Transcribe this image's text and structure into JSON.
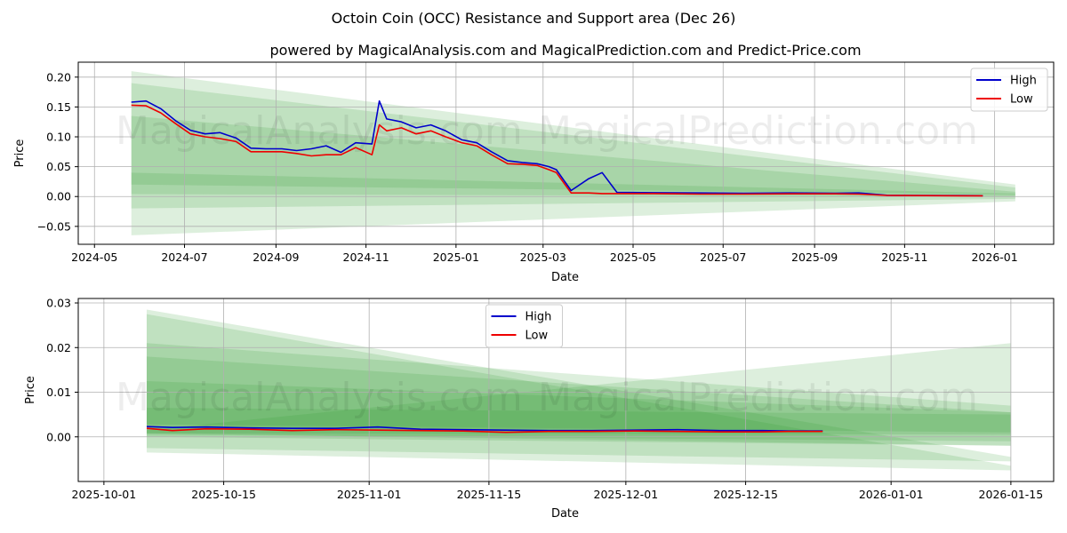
{
  "chart_data": [
    {
      "type": "line",
      "title": "Octoin Coin (OCC) Resistance and Support area (Dec 26)",
      "subtitle": "powered by MagicalAnalysis.com and MagicalPrediction.com and Predict-Price.com",
      "xlabel": "Date",
      "ylabel": "Price",
      "ylim": [
        -0.08,
        0.225
      ],
      "xlim": [
        "2024-04-20",
        "2026-02-10"
      ],
      "x_ticks": [
        "2024-05",
        "2024-07",
        "2024-09",
        "2024-11",
        "2025-01",
        "2025-03",
        "2025-05",
        "2025-07",
        "2025-09",
        "2025-11",
        "2026-01"
      ],
      "x_tick_dates": [
        "2024-05-01",
        "2024-07-01",
        "2024-09-01",
        "2024-11-01",
        "2025-01-01",
        "2025-03-01",
        "2025-05-01",
        "2025-07-01",
        "2025-09-01",
        "2025-11-01",
        "2026-01-01"
      ],
      "y_ticks": [
        "0.20",
        "0.15",
        "0.10",
        "0.05",
        "0.00",
        "−0.05"
      ],
      "y_tick_values": [
        0.2,
        0.15,
        0.1,
        0.05,
        0.0,
        -0.05
      ],
      "grid": true,
      "legend": {
        "position": "top-right",
        "entries": [
          "High",
          "Low"
        ]
      },
      "series": [
        {
          "name": "High",
          "color": "#0000cc",
          "dates": [
            "2024-05-26",
            "2024-06-05",
            "2024-06-15",
            "2024-06-25",
            "2024-07-05",
            "2024-07-15",
            "2024-07-25",
            "2024-08-05",
            "2024-08-15",
            "2024-08-25",
            "2024-09-05",
            "2024-09-15",
            "2024-09-25",
            "2024-10-05",
            "2024-10-15",
            "2024-10-25",
            "2024-11-05",
            "2024-11-10",
            "2024-11-15",
            "2024-11-25",
            "2024-12-05",
            "2024-12-15",
            "2024-12-25",
            "2025-01-05",
            "2025-01-15",
            "2025-01-25",
            "2025-02-05",
            "2025-02-15",
            "2025-02-25",
            "2025-03-05",
            "2025-03-10",
            "2025-03-20",
            "2025-04-01",
            "2025-04-10",
            "2025-04-20",
            "2025-05-15",
            "2025-06-15",
            "2025-07-15",
            "2025-08-15",
            "2025-09-15",
            "2025-10-01",
            "2025-10-20",
            "2025-11-15",
            "2025-12-10",
            "2025-12-24"
          ],
          "values": [
            0.158,
            0.16,
            0.147,
            0.127,
            0.111,
            0.105,
            0.107,
            0.098,
            0.081,
            0.08,
            0.08,
            0.077,
            0.08,
            0.085,
            0.074,
            0.09,
            0.088,
            0.16,
            0.13,
            0.125,
            0.115,
            0.12,
            0.11,
            0.095,
            0.09,
            0.075,
            0.06,
            0.057,
            0.055,
            0.05,
            0.045,
            0.01,
            0.03,
            0.04,
            0.007,
            0.0065,
            0.006,
            0.0055,
            0.006,
            0.0055,
            0.006,
            0.0022,
            0.0018,
            0.0016,
            0.0014
          ]
        },
        {
          "name": "Low",
          "color": "#ee0000",
          "dates": [
            "2024-05-26",
            "2024-06-05",
            "2024-06-15",
            "2024-06-25",
            "2024-07-05",
            "2024-07-15",
            "2024-07-25",
            "2024-08-05",
            "2024-08-15",
            "2024-08-25",
            "2024-09-05",
            "2024-09-15",
            "2024-09-25",
            "2024-10-05",
            "2024-10-15",
            "2024-10-25",
            "2024-11-05",
            "2024-11-10",
            "2024-11-15",
            "2024-11-25",
            "2024-12-05",
            "2024-12-15",
            "2024-12-25",
            "2025-01-05",
            "2025-01-15",
            "2025-01-25",
            "2025-02-05",
            "2025-02-15",
            "2025-02-25",
            "2025-03-05",
            "2025-03-10",
            "2025-03-20",
            "2025-04-01",
            "2025-04-10",
            "2025-04-20",
            "2025-05-15",
            "2025-06-15",
            "2025-07-15",
            "2025-08-15",
            "2025-09-15",
            "2025-10-01",
            "2025-10-20",
            "2025-11-15",
            "2025-12-10",
            "2025-12-24"
          ],
          "values": [
            0.153,
            0.152,
            0.14,
            0.122,
            0.105,
            0.1,
            0.097,
            0.092,
            0.075,
            0.075,
            0.075,
            0.072,
            0.068,
            0.07,
            0.07,
            0.082,
            0.07,
            0.12,
            0.11,
            0.115,
            0.105,
            0.11,
            0.1,
            0.09,
            0.085,
            0.07,
            0.055,
            0.054,
            0.052,
            0.045,
            0.04,
            0.006,
            0.006,
            0.005,
            0.005,
            0.005,
            0.004,
            0.004,
            0.0045,
            0.0045,
            0.004,
            0.0018,
            0.0015,
            0.0013,
            0.0012
          ]
        }
      ],
      "bands": [
        {
          "start": "2024-05-26",
          "end": "2026-01-15",
          "top": [
            0.21,
            0.02
          ],
          "bottom": [
            -0.065,
            -0.008
          ]
        },
        {
          "start": "2024-05-26",
          "end": "2026-01-15",
          "top": [
            0.19,
            0.015
          ],
          "bottom": [
            -0.02,
            -0.004
          ]
        },
        {
          "start": "2024-05-26",
          "end": "2026-01-15",
          "top": [
            0.135,
            0.008
          ],
          "bottom": [
            0.004,
            0.0
          ]
        },
        {
          "start": "2024-05-26",
          "end": "2026-01-15",
          "top": [
            0.04,
            0.005
          ],
          "bottom": [
            0.02,
            0.003
          ]
        }
      ]
    },
    {
      "type": "line",
      "xlabel": "Date",
      "ylabel": "Price",
      "ylim": [
        -0.01,
        0.031
      ],
      "xlim": [
        "2025-09-28",
        "2026-01-20"
      ],
      "x_ticks": [
        "2025-10-01",
        "2025-10-15",
        "2025-11-01",
        "2025-11-15",
        "2025-12-01",
        "2025-12-15",
        "2026-01-01",
        "2026-01-15"
      ],
      "y_ticks": [
        "0.03",
        "0.02",
        "0.01",
        "0.00"
      ],
      "y_tick_values": [
        0.03,
        0.02,
        0.01,
        0.0
      ],
      "grid": true,
      "legend": {
        "position": "top-center",
        "entries": [
          "High",
          "Low"
        ]
      },
      "series": [
        {
          "name": "High",
          "color": "#0000cc",
          "dates": [
            "2025-10-06",
            "2025-10-09",
            "2025-10-13",
            "2025-10-18",
            "2025-10-23",
            "2025-10-28",
            "2025-11-02",
            "2025-11-07",
            "2025-11-12",
            "2025-11-17",
            "2025-11-22",
            "2025-11-27",
            "2025-12-02",
            "2025-12-07",
            "2025-12-12",
            "2025-12-17",
            "2025-12-20",
            "2025-12-24"
          ],
          "values": [
            0.0023,
            0.0021,
            0.0022,
            0.002,
            0.0019,
            0.0019,
            0.0022,
            0.0017,
            0.0016,
            0.0015,
            0.0014,
            0.0014,
            0.0015,
            0.0016,
            0.0014,
            0.0014,
            0.0013,
            0.0013
          ]
        },
        {
          "name": "Low",
          "color": "#ee0000",
          "dates": [
            "2025-10-06",
            "2025-10-09",
            "2025-10-13",
            "2025-10-18",
            "2025-10-23",
            "2025-10-28",
            "2025-11-02",
            "2025-11-07",
            "2025-11-12",
            "2025-11-17",
            "2025-11-22",
            "2025-11-27",
            "2025-12-02",
            "2025-12-07",
            "2025-12-12",
            "2025-12-17",
            "2025-12-20",
            "2025-12-24"
          ],
          "values": [
            0.0019,
            0.0014,
            0.0018,
            0.0017,
            0.0014,
            0.0016,
            0.0015,
            0.0014,
            0.0013,
            0.001,
            0.0012,
            0.0012,
            0.0013,
            0.0012,
            0.0011,
            0.0011,
            0.0012,
            0.0012
          ]
        }
      ],
      "bands": [
        {
          "start": "2025-10-06",
          "end": "2026-01-15",
          "top": [
            0.0285,
            -0.0045
          ],
          "bottom": [
            -0.0025,
            -0.0055
          ]
        },
        {
          "start": "2025-10-06",
          "end": "2026-01-15",
          "top": [
            0.0275,
            -0.0065
          ],
          "bottom": [
            -0.0035,
            -0.0075
          ]
        },
        {
          "start": "2025-10-06",
          "end": "2026-01-15",
          "top": [
            0.0015,
            0.021
          ],
          "bottom": [
            0.0008,
            -0.002
          ]
        },
        {
          "start": "2025-10-06",
          "end": "2026-01-15",
          "top": [
            0.021,
            0.007
          ],
          "bottom": [
            0.0,
            -0.002
          ]
        },
        {
          "start": "2025-10-06",
          "end": "2026-01-15",
          "top": [
            0.018,
            0.0055
          ],
          "bottom": [
            0.0005,
            -0.001
          ]
        },
        {
          "start": "2025-10-06",
          "end": "2026-01-15",
          "top": [
            0.0125,
            0.0055
          ],
          "bottom": [
            0.0008,
            0.0005
          ]
        },
        {
          "start": "2025-10-06",
          "end": "2026-01-15",
          "top": [
            0.0065,
            0.005
          ],
          "bottom": [
            0.0028,
            0.001
          ]
        }
      ]
    }
  ],
  "watermarks": [
    "MagicalAnalysis.com",
    "MagicalPrediction.com"
  ]
}
